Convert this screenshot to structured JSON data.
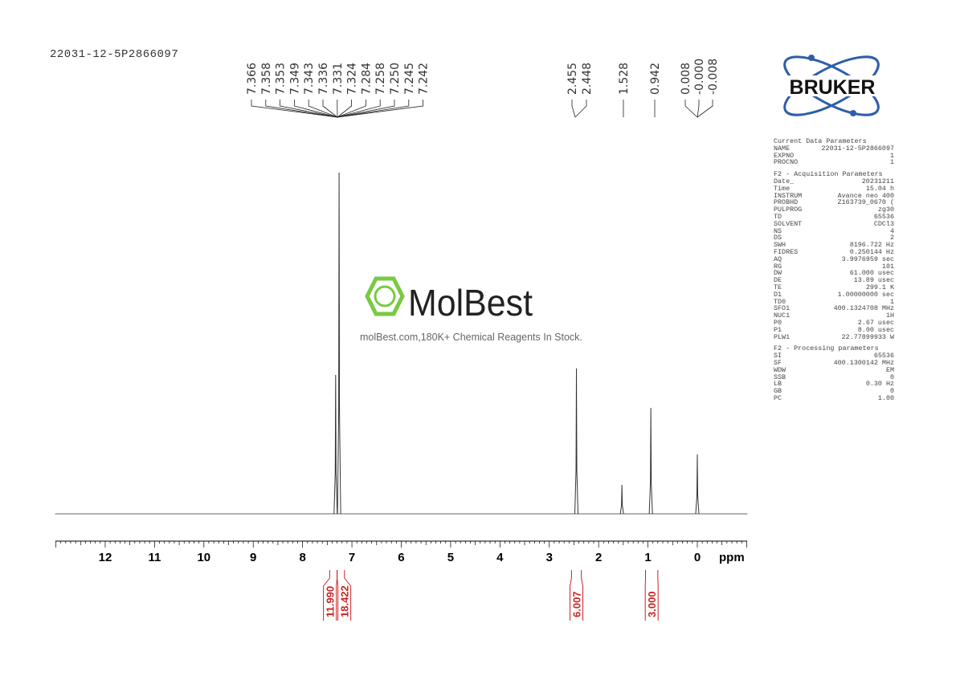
{
  "title": "22031-12-5P2866097",
  "watermark": {
    "brand": "MolBest",
    "tagline": "molBest.com,180K+ Chemical Reagents In Stock."
  },
  "logo": {
    "text": "BRUKER"
  },
  "parameters": {
    "sections": [
      {
        "heading": "Current Data Parameters",
        "rows": [
          [
            "NAME",
            "22031-12-5P2866097"
          ],
          [
            "EXPNO",
            "1"
          ],
          [
            "PROCNO",
            "1"
          ]
        ]
      },
      {
        "heading": "F2 - Acquisition Parameters",
        "rows": [
          [
            "Date_",
            "20231211"
          ],
          [
            "Time",
            "15.04 h"
          ],
          [
            "INSTRUM",
            "Avance neo 400"
          ],
          [
            "PROBHD",
            "Z163739_0670 ("
          ],
          [
            "PULPROG",
            "zg30"
          ],
          [
            "TD",
            "65536"
          ],
          [
            "SOLVENT",
            "CDCl3"
          ],
          [
            "NS",
            "4"
          ],
          [
            "DS",
            "2"
          ],
          [
            "SWH",
            "8196.722 Hz"
          ],
          [
            "FIDRES",
            "0.250144 Hz"
          ],
          [
            "AQ",
            "3.9976959 sec"
          ],
          [
            "RG",
            "101"
          ],
          [
            "DW",
            "61.000 usec"
          ],
          [
            "DE",
            "13.89 usec"
          ],
          [
            "TE",
            "299.1 K"
          ],
          [
            "D1",
            "1.00000000 sec"
          ],
          [
            "TD0",
            "1"
          ],
          [
            "SFO1",
            "400.1324708 MHz"
          ],
          [
            "NUC1",
            "1H"
          ],
          [
            "P0",
            "2.67 usec"
          ],
          [
            "P1",
            "8.00 usec"
          ],
          [
            "PLW1",
            "22.77899933 W"
          ]
        ]
      },
      {
        "heading": "F2 - Processing parameters",
        "rows": [
          [
            "SI",
            "65536"
          ],
          [
            "SF",
            "400.1300142 MHz"
          ],
          [
            "WDW",
            "EM"
          ],
          [
            "SSB",
            "0"
          ],
          [
            "LB",
            "0.30 Hz"
          ],
          [
            "GB",
            "0"
          ],
          [
            "PC",
            "1.00"
          ]
        ]
      }
    ]
  },
  "chart_data": {
    "type": "line",
    "xlabel": "ppm",
    "xlim": [
      13.0,
      -1.0
    ],
    "x_reversed": true,
    "xticks": [
      "12",
      "11",
      "10",
      "9",
      "8",
      "7",
      "6",
      "5",
      "4",
      "3",
      "2",
      "1",
      "0"
    ],
    "peaks": [
      {
        "ppm": 7.33,
        "intensity": 173
      },
      {
        "ppm": 7.26,
        "intensity": 425
      },
      {
        "ppm": 2.45,
        "intensity": 181
      },
      {
        "ppm": 1.528,
        "intensity": 36
      },
      {
        "ppm": 0.942,
        "intensity": 132
      },
      {
        "ppm": 0.0,
        "intensity": 74
      }
    ],
    "peak_labels": {
      "aromatic": [
        "7.366",
        "7.358",
        "7.353",
        "7.349",
        "7.343",
        "7.336",
        "7.331",
        "7.324",
        "7.284",
        "7.258",
        "7.250",
        "7.245",
        "7.242"
      ],
      "group_2": [
        "2.455",
        "2.448"
      ],
      "group_3": [
        "1.528"
      ],
      "group_4": [
        "0.942"
      ],
      "group_5": [
        "0.008",
        "-0.000",
        "-0.008"
      ]
    },
    "integrals": [
      {
        "from": 7.45,
        "to": 7.3,
        "value": "11.990"
      },
      {
        "from": 7.3,
        "to": 7.15,
        "value": "18.422"
      },
      {
        "from": 2.55,
        "to": 2.35,
        "value": "6.007"
      },
      {
        "from": 1.05,
        "to": 0.8,
        "value": "3.000"
      }
    ],
    "colors": {
      "spectrum": "#333333",
      "integral": "#cc2222",
      "logo_blue": "#2e5ea8",
      "watermark_green": "#7ac943"
    }
  }
}
